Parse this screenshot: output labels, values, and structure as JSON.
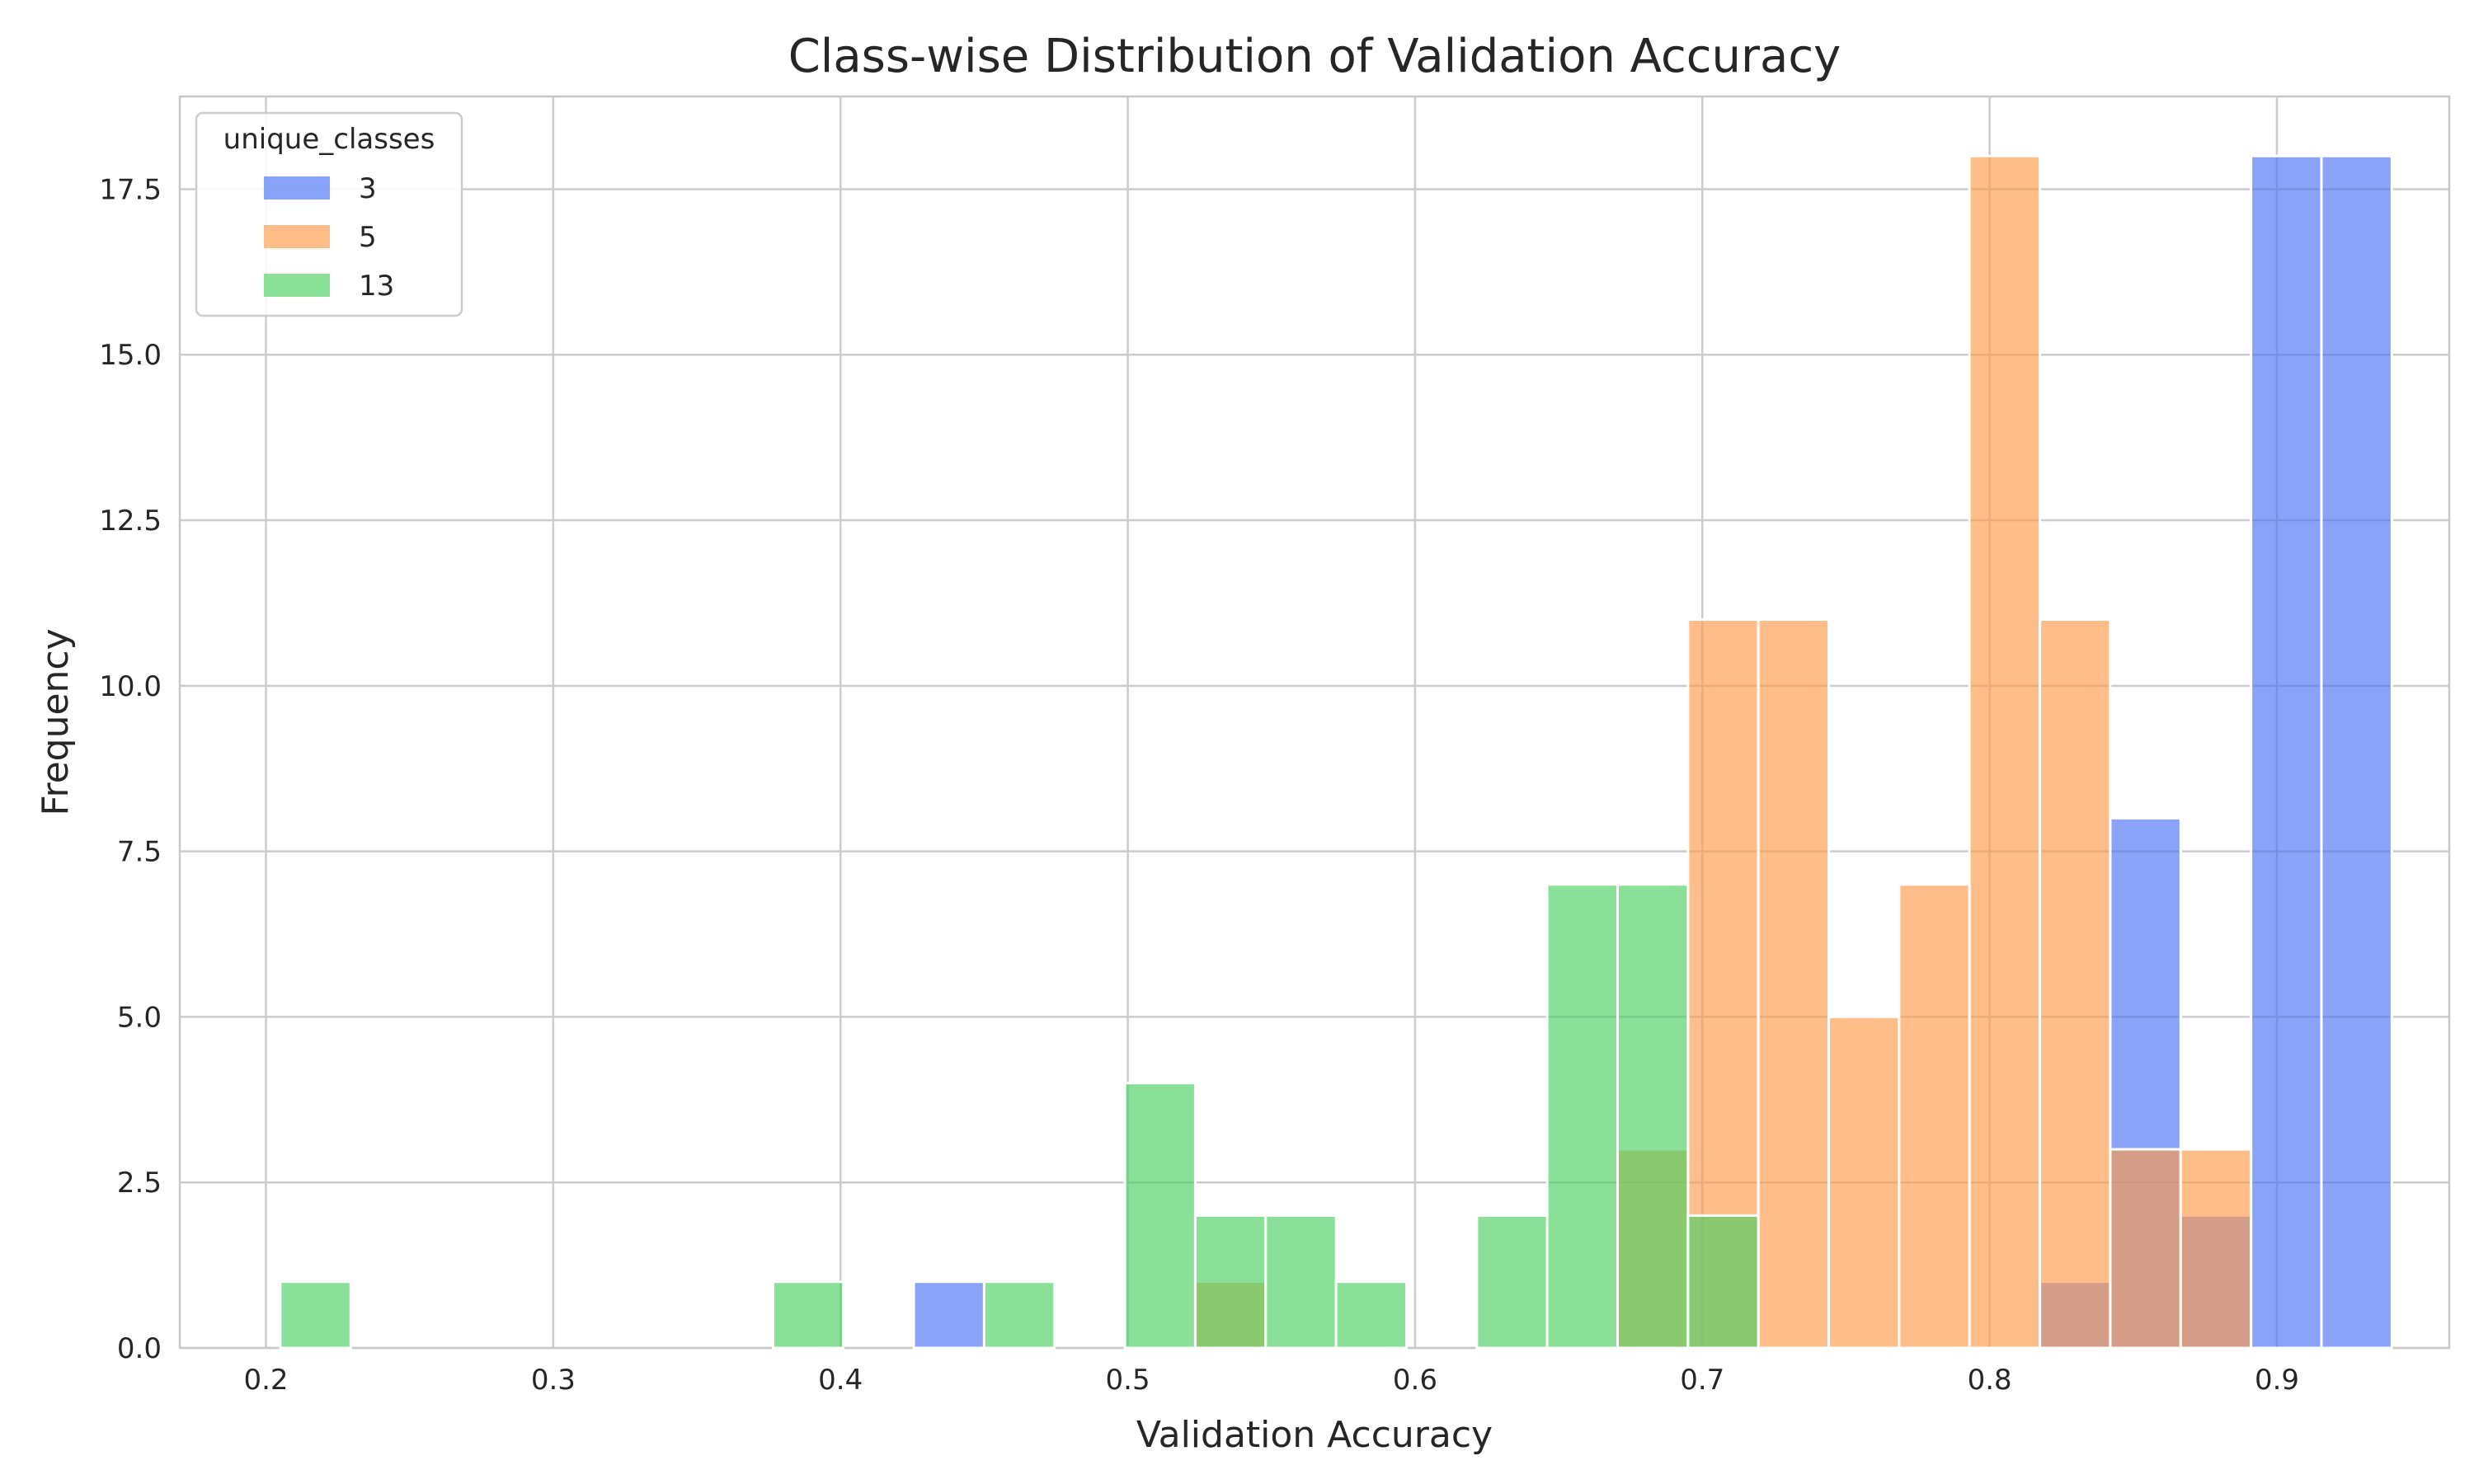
{
  "chart_data": {
    "type": "histogram",
    "title": "Class-wise Distribution of Validation Accuracy",
    "xlabel": "Validation Accuracy",
    "ylabel": "Frequency",
    "xlim": [
      0.17,
      0.96
    ],
    "ylim": [
      0,
      18.9
    ],
    "xticks": [
      0.2,
      0.3,
      0.4,
      0.5,
      0.6,
      0.7,
      0.8,
      0.9
    ],
    "xtick_labels": [
      "0.2",
      "0.3",
      "0.4",
      "0.5",
      "0.6",
      "0.7",
      "0.8",
      "0.9"
    ],
    "yticks": [
      0,
      2.5,
      5,
      7.5,
      10,
      12.5,
      15,
      17.5
    ],
    "ytick_labels": [
      "0.0",
      "2.5",
      "5.0",
      "7.5",
      "10.0",
      "12.5",
      "15.0",
      "17.5"
    ],
    "grid": true,
    "legend": {
      "title": "unique_classes",
      "placement": "top-left"
    },
    "bins": [
      [
        0.205,
        0.2295
      ],
      [
        0.2295,
        0.254
      ],
      [
        0.254,
        0.2785
      ],
      [
        0.2785,
        0.303
      ],
      [
        0.303,
        0.3275
      ],
      [
        0.3275,
        0.352
      ],
      [
        0.352,
        0.3765
      ],
      [
        0.3765,
        0.401
      ],
      [
        0.401,
        0.4255
      ],
      [
        0.4255,
        0.45
      ],
      [
        0.45,
        0.4745
      ],
      [
        0.4745,
        0.499
      ],
      [
        0.499,
        0.5235
      ],
      [
        0.5235,
        0.548
      ],
      [
        0.548,
        0.5725
      ],
      [
        0.5725,
        0.597
      ],
      [
        0.597,
        0.6215
      ],
      [
        0.6215,
        0.646
      ],
      [
        0.646,
        0.6705
      ],
      [
        0.6705,
        0.695
      ],
      [
        0.695,
        0.7195
      ],
      [
        0.7195,
        0.744
      ],
      [
        0.744,
        0.7685
      ],
      [
        0.7685,
        0.793
      ],
      [
        0.793,
        0.8175
      ],
      [
        0.8175,
        0.842
      ],
      [
        0.842,
        0.8665
      ],
      [
        0.8665,
        0.891
      ],
      [
        0.891,
        0.9155
      ],
      [
        0.9155,
        0.94
      ]
    ],
    "series": [
      {
        "name": "3",
        "color": "#4c72f5",
        "values": [
          0,
          0,
          0,
          0,
          0,
          0,
          0,
          0,
          0,
          1,
          0,
          0,
          0,
          0,
          0,
          0,
          0,
          0,
          0,
          0,
          0,
          0,
          0,
          0,
          0,
          1,
          8,
          2,
          18,
          18
        ]
      },
      {
        "name": "5",
        "color": "#fd9a4a",
        "values": [
          0,
          0,
          0,
          0,
          0,
          0,
          0,
          0,
          0,
          0,
          0,
          0,
          0,
          1,
          0,
          0,
          0,
          0,
          0,
          3,
          11,
          11,
          5,
          7,
          18,
          11,
          3,
          3,
          0,
          0
        ]
      },
      {
        "name": "13",
        "color": "#4bcf62",
        "values": [
          1,
          0,
          0,
          0,
          0,
          0,
          0,
          1,
          0,
          0,
          1,
          0,
          4,
          2,
          2,
          1,
          0,
          2,
          7,
          7,
          2,
          0,
          0,
          0,
          0,
          0,
          0,
          0,
          0,
          0
        ]
      }
    ]
  }
}
